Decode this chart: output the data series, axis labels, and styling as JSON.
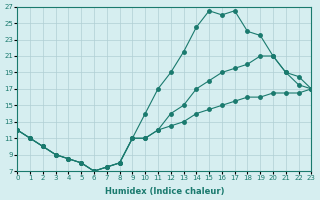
{
  "xlabel": "Humidex (Indice chaleur)",
  "ylabel": "",
  "bg_color": "#d6eef0",
  "grid_color": "#b0cfd4",
  "line_color": "#1a7a6e",
  "xlim": [
    0,
    23
  ],
  "ylim": [
    7,
    27
  ],
  "xticks": [
    0,
    1,
    2,
    3,
    4,
    5,
    6,
    7,
    8,
    9,
    10,
    11,
    12,
    13,
    14,
    15,
    16,
    17,
    18,
    19,
    20,
    21,
    22,
    23
  ],
  "yticks": [
    7,
    9,
    11,
    13,
    15,
    17,
    19,
    21,
    23,
    25,
    27
  ],
  "line1_x": [
    0,
    1,
    2,
    3,
    4,
    5,
    6,
    7,
    8,
    9,
    10,
    11,
    12,
    13,
    14,
    15,
    16,
    17,
    18,
    19,
    20,
    21,
    22,
    23
  ],
  "line1_y": [
    12,
    11,
    10,
    9,
    8.5,
    8,
    7,
    7.5,
    8,
    11,
    14,
    17,
    19,
    21.5,
    24.5,
    26.5,
    26,
    26.5,
    24,
    23.5,
    21,
    19,
    17.5,
    17
  ],
  "line2_x": [
    0,
    1,
    2,
    3,
    4,
    5,
    6,
    7,
    8,
    9,
    10,
    11,
    12,
    13,
    14,
    15,
    16,
    17,
    18,
    19,
    20,
    21,
    22,
    23
  ],
  "line2_y": [
    12,
    11,
    10,
    9,
    8.5,
    8,
    7,
    7.5,
    8,
    11,
    11,
    12,
    14,
    15,
    17,
    18,
    19,
    19.5,
    20,
    21,
    21,
    19,
    18.5,
    17
  ],
  "line3_x": [
    0,
    1,
    2,
    3,
    4,
    5,
    6,
    7,
    8,
    9,
    10,
    11,
    12,
    13,
    14,
    15,
    16,
    17,
    18,
    19,
    20,
    21,
    22,
    23
  ],
  "line3_y": [
    12,
    11,
    10,
    9,
    8.5,
    8,
    7,
    7.5,
    8,
    11,
    11,
    12,
    12.5,
    13,
    14,
    14.5,
    15,
    15.5,
    16,
    16,
    16.5,
    16.5,
    16.5,
    17
  ]
}
